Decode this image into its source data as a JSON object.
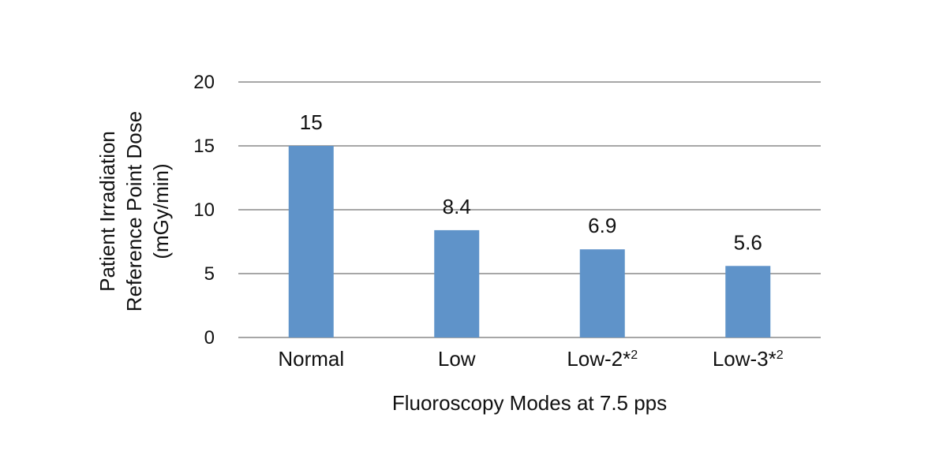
{
  "colors": {
    "bar": "#5f93c9",
    "grid": "#8a8a8a",
    "text": "#111111"
  },
  "chart_data": {
    "type": "bar",
    "title": "",
    "xlabel": "Fluoroscopy Modes at 7.5 pps",
    "ylabel": [
      "Patient Irradiation",
      "Reference Point Dose",
      "(mGy/min)"
    ],
    "ylim": [
      0,
      20
    ],
    "yticks": [
      0,
      5,
      10,
      15,
      20
    ],
    "grid": true,
    "categories": [
      {
        "label": "Normal",
        "sup": ""
      },
      {
        "label": "Low",
        "sup": ""
      },
      {
        "label": "Low-2*",
        "sup": "2"
      },
      {
        "label": "Low-3*",
        "sup": "2"
      }
    ],
    "values": [
      15,
      8.4,
      6.9,
      5.6
    ],
    "data_labels": [
      "15",
      "8.4",
      "6.9",
      "5.6"
    ]
  }
}
